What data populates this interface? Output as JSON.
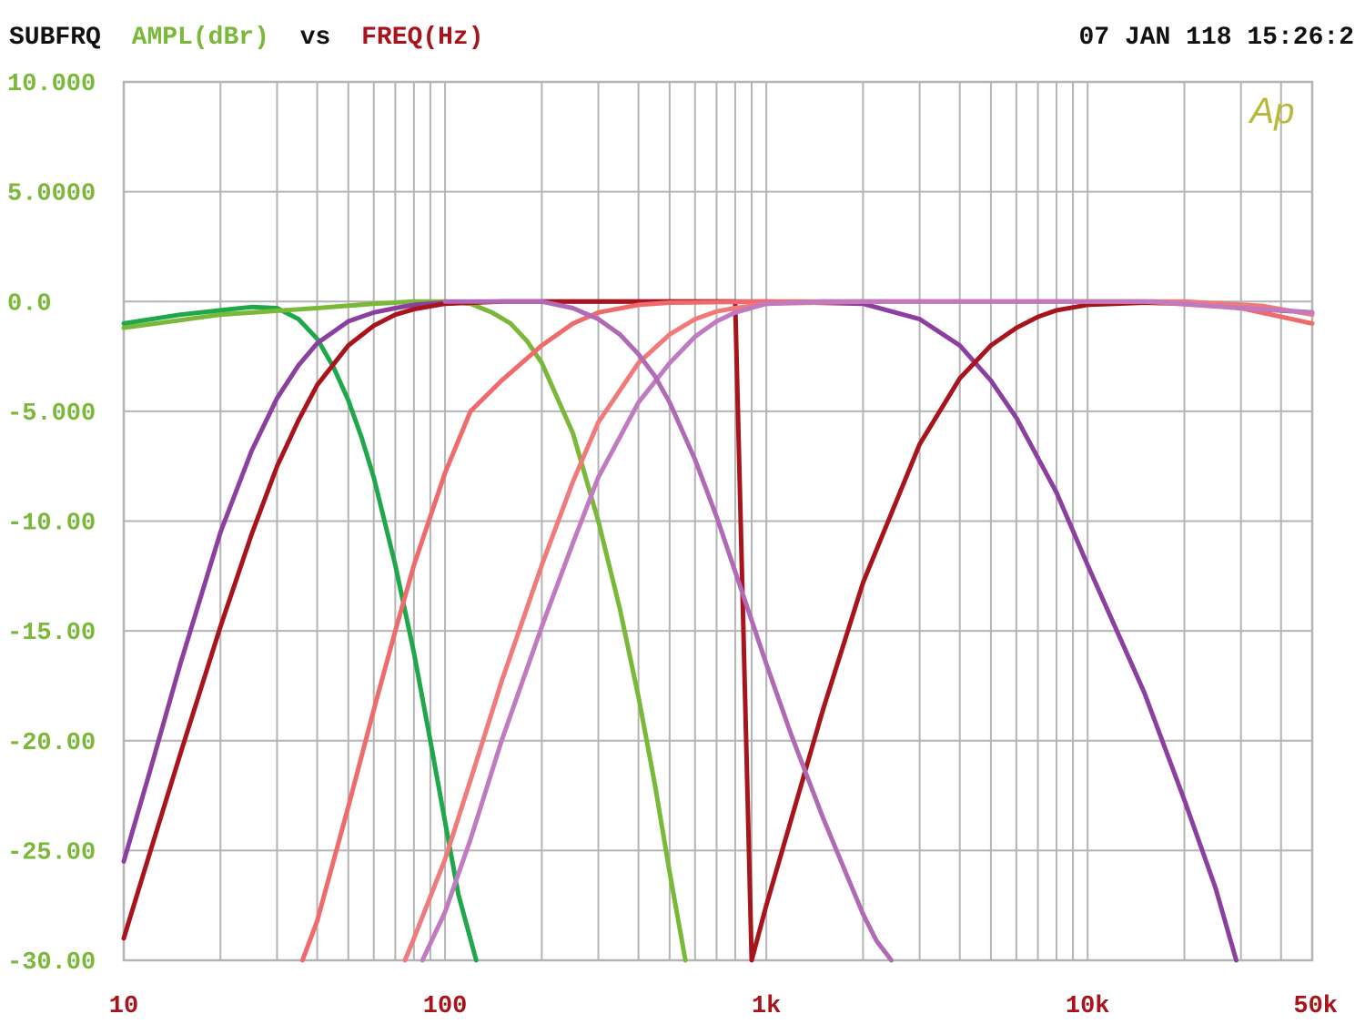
{
  "header": {
    "title_parts": [
      "SUBFRQ",
      "AMPL(dBr)",
      "vs",
      "FREQ(Hz)"
    ],
    "timestamp": "07 JAN 118 15:26:2",
    "logo_text": "Ap"
  },
  "chart_data": {
    "type": "line",
    "xscale": "log",
    "xlim": [
      10,
      50000
    ],
    "ylim": [
      -30,
      10
    ],
    "grid": true,
    "xticks": [
      {
        "value": 10,
        "label": "10"
      },
      {
        "value": 100,
        "label": "100"
      },
      {
        "value": 1000,
        "label": "1k"
      },
      {
        "value": 10000,
        "label": "10k"
      },
      {
        "value": 50000,
        "label": "50k"
      }
    ],
    "yticks": [
      {
        "value": 10,
        "label": "10.000"
      },
      {
        "value": 5,
        "label": "5.0000"
      },
      {
        "value": 0,
        "label": "0.0"
      },
      {
        "value": -5,
        "label": "-5.000"
      },
      {
        "value": -10,
        "label": "-10.00"
      },
      {
        "value": -15,
        "label": "-15.00"
      },
      {
        "value": -20,
        "label": "-20.00"
      },
      {
        "value": -25,
        "label": "-25.00"
      },
      {
        "value": -30,
        "label": "-30.00"
      }
    ],
    "colors": {
      "grid": "#b4b4b4",
      "ylabel": "#7ab83a",
      "xlabel": "#a8141c"
    },
    "series": [
      {
        "color": "#1fa84a",
        "x": [
          10,
          15,
          20,
          25,
          30,
          35,
          40,
          45,
          50,
          55,
          60,
          70,
          80,
          90,
          100,
          110,
          125
        ],
        "y": [
          -1.0,
          -0.6,
          -0.4,
          -0.25,
          -0.3,
          -0.8,
          -1.7,
          -3.0,
          -4.5,
          -6.2,
          -8.0,
          -12.0,
          -16.0,
          -20.0,
          -23.7,
          -27.0,
          -30
        ]
      },
      {
        "color": "#7ab83a",
        "x": [
          10,
          20,
          40,
          60,
          80,
          100,
          120,
          140,
          160,
          180,
          200,
          250,
          300,
          350,
          400,
          450,
          500,
          560
        ],
        "y": [
          -1.2,
          -0.6,
          -0.3,
          -0.1,
          0,
          0,
          -0.1,
          -0.5,
          -1.0,
          -1.8,
          -2.8,
          -6.0,
          -10.0,
          -14.0,
          -18.0,
          -22.0,
          -26.0,
          -30
        ]
      },
      {
        "color": "#8b3f9e",
        "x": [
          10,
          12,
          15,
          20,
          25,
          30,
          35,
          40,
          50,
          60,
          70,
          80,
          100,
          150,
          200,
          500,
          1000,
          2000,
          3000,
          4000,
          5000,
          6000,
          8000,
          10000,
          15000,
          20000,
          25000,
          29000
        ],
        "y": [
          -25.5,
          -21.5,
          -16.5,
          -10.5,
          -6.8,
          -4.4,
          -2.9,
          -1.9,
          -0.9,
          -0.5,
          -0.3,
          -0.15,
          -0.05,
          0,
          0,
          0,
          0,
          -0.1,
          -0.8,
          -2.0,
          -3.6,
          -5.3,
          -8.7,
          -12.0,
          -17.8,
          -22.7,
          -26.7,
          -30
        ]
      },
      {
        "color": "#a8141c",
        "x": [
          10,
          12,
          15,
          20,
          25,
          30,
          35,
          40,
          50,
          60,
          70,
          80,
          100,
          150,
          200,
          500,
          800,
          900,
          1000,
          1500,
          2000,
          3000,
          4000,
          5000,
          6000,
          7000,
          8000,
          10000,
          15000,
          20000,
          30000,
          50000
        ],
        "y": [
          -29.0,
          -25.2,
          -20.6,
          -14.8,
          -10.6,
          -7.5,
          -5.4,
          -3.8,
          -2.0,
          -1.1,
          -0.6,
          -0.35,
          -0.1,
          0,
          0,
          0,
          0,
          -30,
          -27.5,
          -18.6,
          -12.8,
          -6.5,
          -3.5,
          -2.0,
          -1.2,
          -0.7,
          -0.4,
          -0.15,
          -0.05,
          -0.1,
          -0.3,
          -0.5
        ]
      },
      {
        "color": "#ef6a6a",
        "x": [
          36,
          40,
          50,
          60,
          70,
          80,
          100,
          120,
          150,
          200,
          250,
          300,
          400,
          500,
          1000,
          5000,
          15000,
          30000,
          50000
        ],
        "y": [
          -30,
          -28.2,
          -23.0,
          -18.6,
          -15.0,
          -12.0,
          -7.8,
          -5.0,
          -3.6,
          -2.0,
          -1.0,
          -0.5,
          -0.15,
          -0.05,
          0,
          0,
          0,
          -0.3,
          -1.0
        ]
      },
      {
        "color": "#f07a7a",
        "x": [
          75,
          80,
          100,
          120,
          150,
          200,
          250,
          300,
          400,
          500,
          600,
          700,
          800,
          1000,
          2000,
          10000,
          20000,
          35000,
          50000
        ],
        "y": [
          -30,
          -29.0,
          -25.4,
          -21.8,
          -17.3,
          -12.0,
          -8.2,
          -5.5,
          -2.8,
          -1.5,
          -0.8,
          -0.45,
          -0.3,
          -0.1,
          0,
          0,
          0,
          -0.2,
          -0.6
        ]
      },
      {
        "color": "#c07ac0",
        "x": [
          85,
          100,
          120,
          150,
          200,
          250,
          300,
          400,
          500,
          600,
          700,
          800,
          1000,
          1500,
          2000,
          10000,
          15000,
          16000,
          20000,
          30000,
          40000,
          50000
        ],
        "y": [
          -30,
          -27.8,
          -24.5,
          -20.0,
          -14.8,
          -11.0,
          -8.0,
          -4.6,
          -2.8,
          -1.6,
          -0.9,
          -0.5,
          -0.1,
          0,
          0,
          0,
          0,
          0,
          -0.1,
          -0.3,
          -0.4,
          -0.5
        ]
      },
      {
        "color": "#b06ab5",
        "x": [
          100,
          200,
          250,
          300,
          350,
          400,
          450,
          500,
          600,
          700,
          800,
          1000,
          1200,
          1500,
          1800,
          2000,
          2200,
          2450
        ],
        "y": [
          0,
          0,
          -0.3,
          -0.8,
          -1.5,
          -2.4,
          -3.4,
          -4.6,
          -7.2,
          -9.8,
          -12.3,
          -16.5,
          -19.8,
          -23.5,
          -26.3,
          -27.9,
          -29.1,
          -30
        ]
      }
    ]
  }
}
